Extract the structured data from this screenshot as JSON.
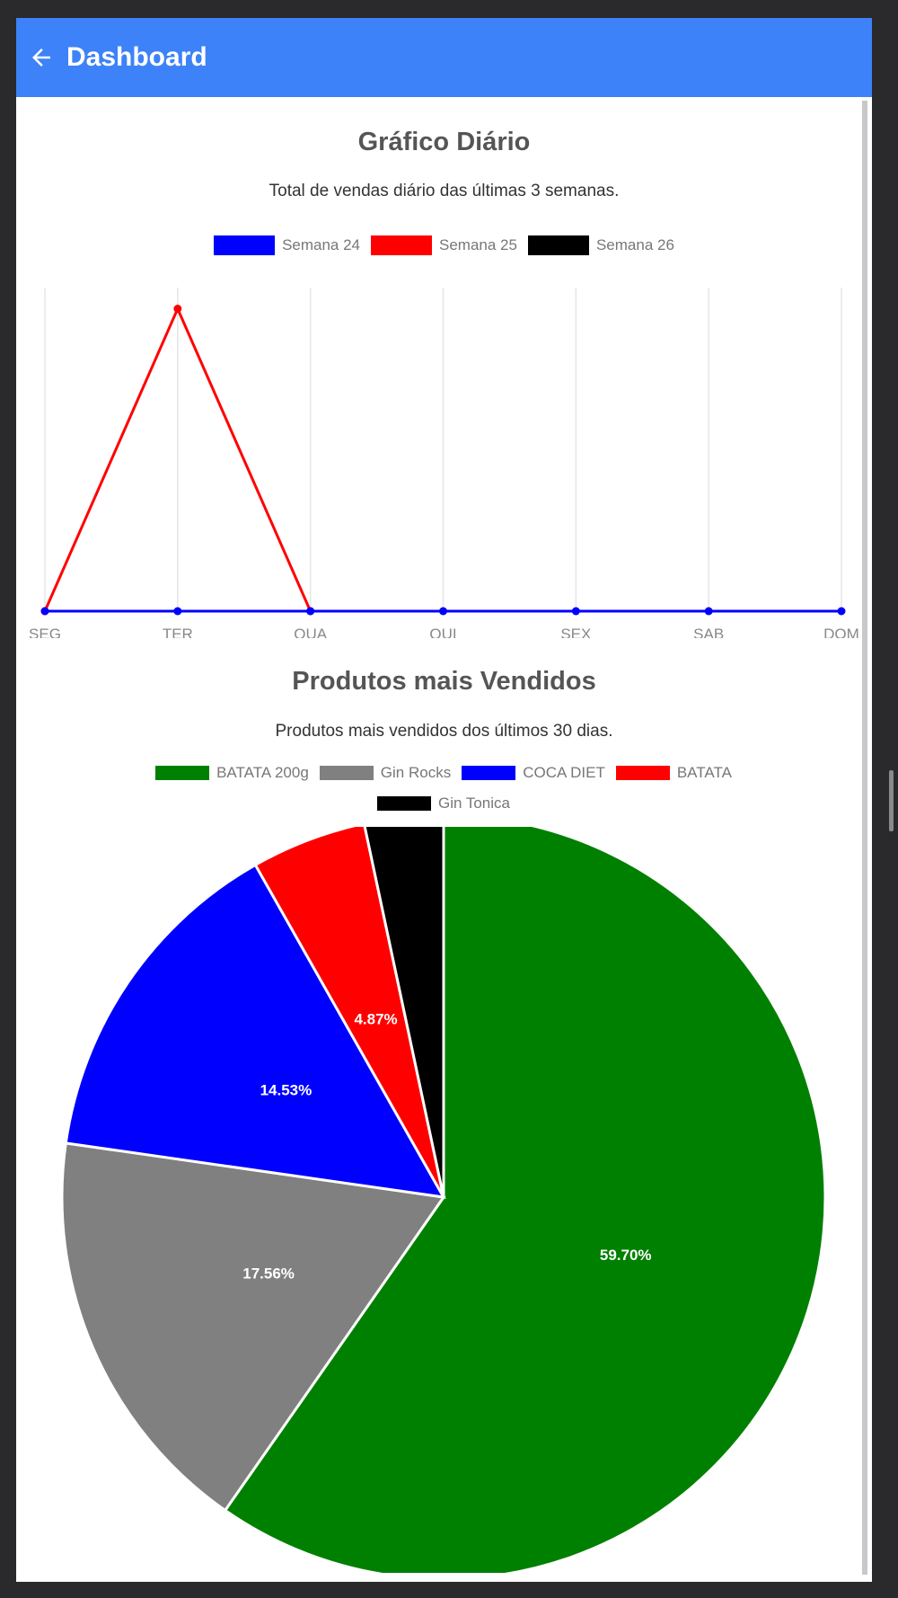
{
  "appbar": {
    "title": "Dashboard"
  },
  "colors": {
    "appbar": "#3d82f8"
  },
  "charts": {
    "line": {
      "title": "Gráfico Diário",
      "subtitle": "Total de vendas diário das últimas 3 semanas."
    },
    "pie": {
      "title": "Produtos mais Vendidos",
      "subtitle": "Produtos mais vendidos dos últimos 30 dias."
    }
  },
  "chart_data": [
    {
      "type": "line",
      "title": "Gráfico Diário",
      "subtitle": "Total de vendas diário das últimas 3 semanas.",
      "categories": [
        "SEG",
        "TER",
        "QUA",
        "QUI",
        "SEX",
        "SAB",
        "DOM"
      ],
      "series": [
        {
          "name": "Semana 24",
          "color": "#0000ff",
          "values": [
            0,
            0,
            0,
            0,
            0,
            0,
            0
          ]
        },
        {
          "name": "Semana 25",
          "color": "#ff0000",
          "values": [
            0,
            1,
            0,
            null,
            null,
            null,
            null
          ]
        },
        {
          "name": "Semana 26",
          "color": "#000000",
          "values": [
            null,
            null,
            null,
            null,
            null,
            null,
            null
          ]
        }
      ],
      "ylim": [
        0,
        1.07
      ],
      "grid": true,
      "legend": "top"
    },
    {
      "type": "pie",
      "title": "Produtos mais Vendidos",
      "subtitle": "Produtos mais vendidos dos últimos 30 dias.",
      "slices": [
        {
          "name": "BATATA 200g",
          "color": "#008000",
          "value": 59.7,
          "label": "59.70%"
        },
        {
          "name": "Gin Rocks",
          "color": "#808080",
          "value": 17.56,
          "label": "17.56%"
        },
        {
          "name": "COCA DIET",
          "color": "#0000ff",
          "value": 14.53,
          "label": "14.53%"
        },
        {
          "name": "BATATA",
          "color": "#ff0000",
          "value": 4.87,
          "label": "4.87%"
        },
        {
          "name": "Gin Tonica",
          "color": "#000000",
          "value": 3.34,
          "label": ""
        }
      ],
      "legend": "top"
    }
  ]
}
